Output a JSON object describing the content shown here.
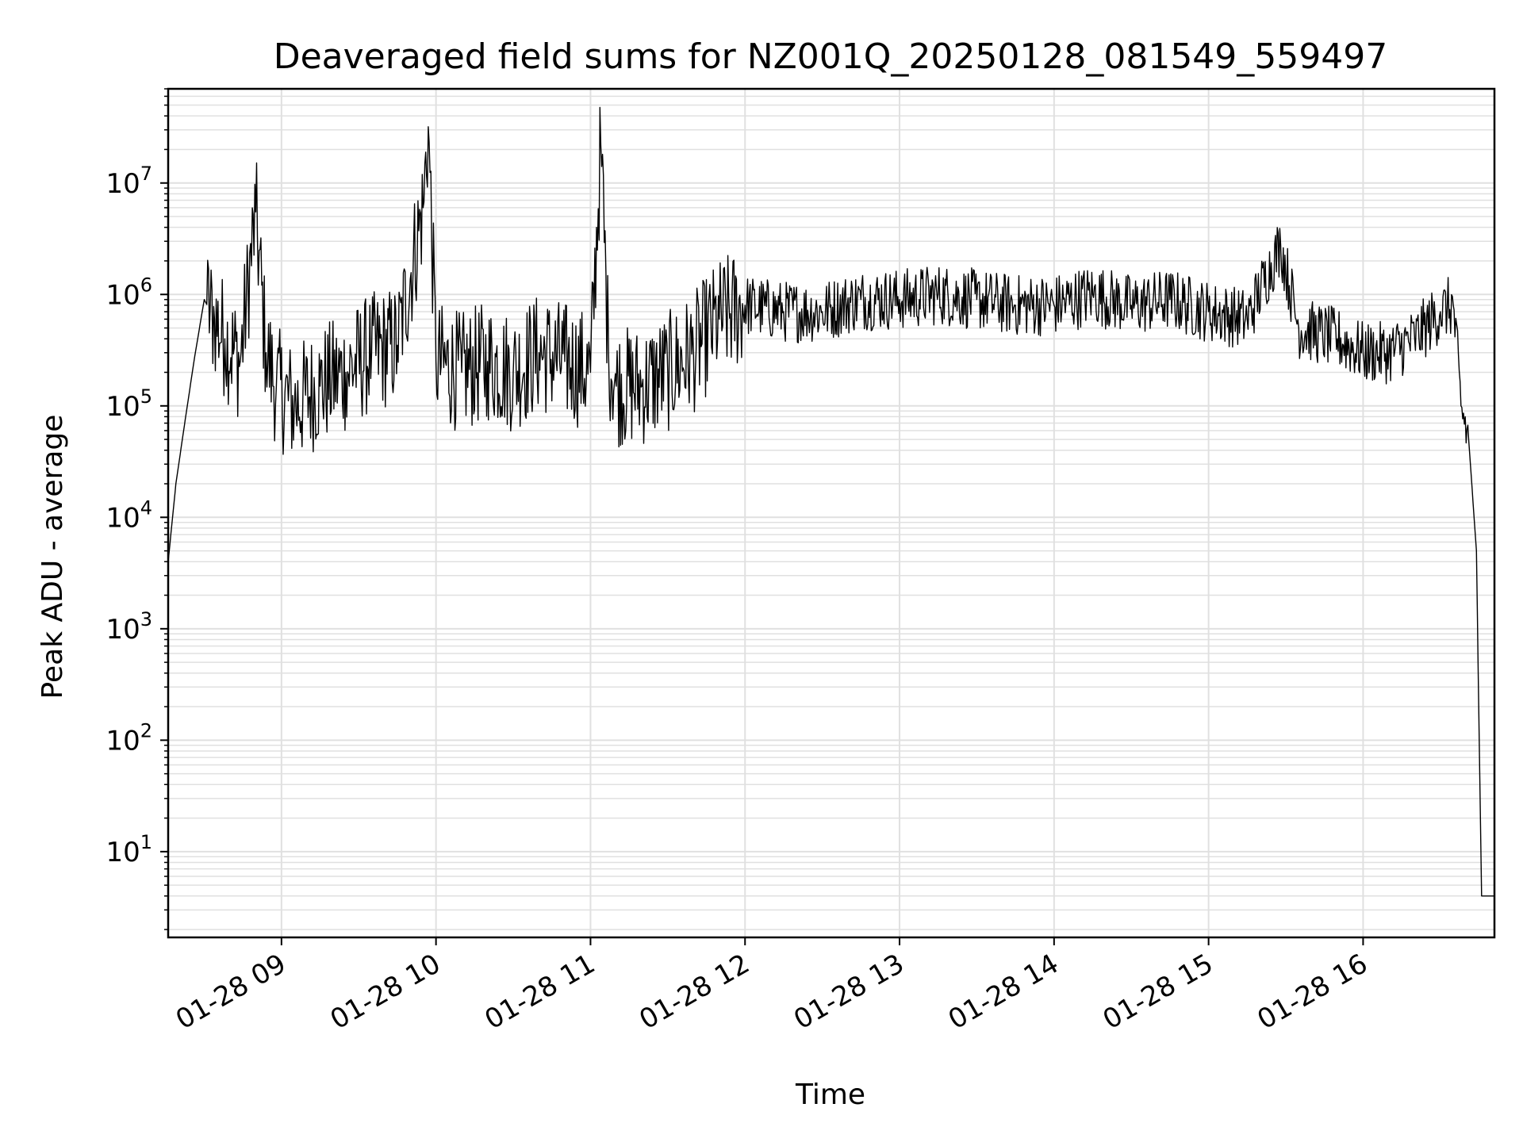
{
  "chart_data": {
    "type": "line",
    "title": "Deaveraged field sums for NZ001Q_20250128_081549_559497",
    "xlabel": "Time",
    "ylabel": "Peak ADU - average",
    "yscale": "log",
    "ylim": [
      1.7,
      70000000
    ],
    "xlim": [
      "2025-01-28 08:16",
      "2025-01-28 16:51"
    ],
    "grid": true,
    "grid_minor": true,
    "line_color": "#000000",
    "grid_color": "#e0e0e0",
    "x_ticks": [
      {
        "label": "01-28 09",
        "value": "2025-01-28 09:00"
      },
      {
        "label": "01-28 10",
        "value": "2025-01-28 10:00"
      },
      {
        "label": "01-28 11",
        "value": "2025-01-28 11:00"
      },
      {
        "label": "01-28 12",
        "value": "2025-01-28 12:00"
      },
      {
        "label": "01-28 13",
        "value": "2025-01-28 13:00"
      },
      {
        "label": "01-28 14",
        "value": "2025-01-28 14:00"
      },
      {
        "label": "01-28 15",
        "value": "2025-01-28 15:00"
      },
      {
        "label": "01-28 16",
        "value": "2025-01-28 16:00"
      }
    ],
    "y_ticks": [
      {
        "base": "10",
        "exp": "1",
        "value": 10
      },
      {
        "base": "10",
        "exp": "2",
        "value": 100
      },
      {
        "base": "10",
        "exp": "3",
        "value": 1000
      },
      {
        "base": "10",
        "exp": "4",
        "value": 10000
      },
      {
        "base": "10",
        "exp": "5",
        "value": 100000
      },
      {
        "base": "10",
        "exp": "6",
        "value": 1000000
      },
      {
        "base": "10",
        "exp": "7",
        "value": 10000000
      }
    ],
    "series": [
      {
        "x": [
          "2025-01-28 08:16",
          "2025-01-28 08:19",
          "2025-01-28 08:22",
          "2025-01-28 08:26",
          "2025-01-28 08:30",
          "2025-01-28 08:34",
          "2025-01-28 08:38",
          "2025-01-28 08:44",
          "2025-01-28 08:50",
          "2025-01-28 08:54",
          "2025-01-28 08:58",
          "2025-01-28 09:05",
          "2025-01-28 09:15",
          "2025-01-28 09:25",
          "2025-01-28 09:35",
          "2025-01-28 09:45",
          "2025-01-28 09:55",
          "2025-01-28 09:57",
          "2025-01-28 10:00",
          "2025-01-28 10:10",
          "2025-01-28 10:20",
          "2025-01-28 10:30",
          "2025-01-28 10:40",
          "2025-01-28 10:50",
          "2025-01-28 11:00",
          "2025-01-28 11:04",
          "2025-01-28 11:07",
          "2025-01-28 11:10",
          "2025-01-28 11:20",
          "2025-01-28 11:30",
          "2025-01-28 11:40",
          "2025-01-28 11:50",
          "2025-01-28 12:00",
          "2025-01-28 12:15",
          "2025-01-28 12:30",
          "2025-01-28 12:45",
          "2025-01-28 13:00",
          "2025-01-28 13:15",
          "2025-01-28 13:30",
          "2025-01-28 13:45",
          "2025-01-28 14:00",
          "2025-01-28 14:15",
          "2025-01-28 14:30",
          "2025-01-28 14:45",
          "2025-01-28 15:00",
          "2025-01-28 15:15",
          "2025-01-28 15:28",
          "2025-01-28 15:35",
          "2025-01-28 15:50",
          "2025-01-28 16:00",
          "2025-01-28 16:10",
          "2025-01-28 16:20",
          "2025-01-28 16:30",
          "2025-01-28 16:35",
          "2025-01-28 16:38",
          "2025-01-28 16:41",
          "2025-01-28 16:44",
          "2025-01-28 16:46",
          "2025-01-28 16:47",
          "2025-01-28 16:51"
        ],
        "values": [
          4000,
          20000,
          60000,
          250000,
          900000,
          600000,
          400000,
          250000,
          5500000,
          300000,
          150000,
          100000,
          150000,
          200000,
          300000,
          350000,
          6000000,
          32000000,
          250000,
          200000,
          250000,
          200000,
          300000,
          250000,
          200000,
          22000000,
          300000,
          150000,
          150000,
          200000,
          300000,
          600000,
          800000,
          700000,
          700000,
          900000,
          900000,
          1000000,
          900000,
          800000,
          800000,
          1000000,
          800000,
          900000,
          700000,
          600000,
          2800000,
          500000,
          400000,
          300000,
          300000,
          400000,
          700000,
          800000,
          100000,
          50000,
          5000,
          4,
          4,
          4
        ]
      }
    ]
  }
}
